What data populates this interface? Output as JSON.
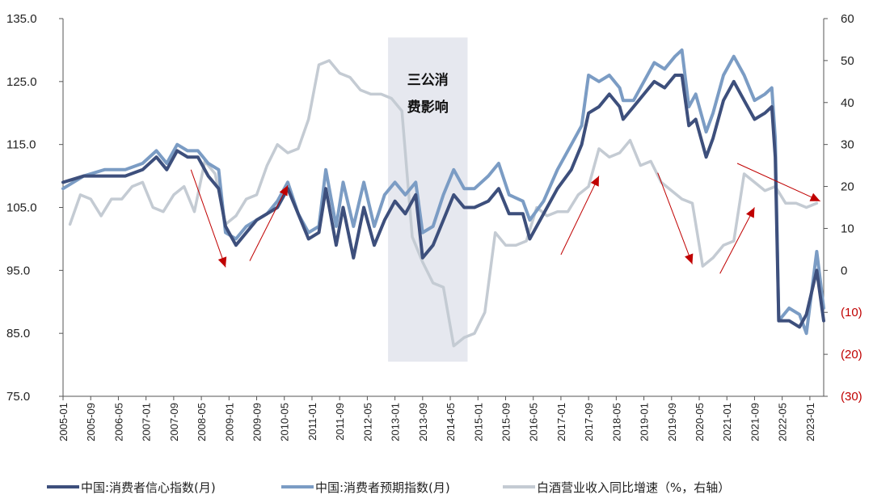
{
  "chart_data": {
    "type": "line",
    "left_axis": {
      "min": 75,
      "max": 135,
      "ticks": [
        "135.0",
        "125.0",
        "115.0",
        "105.0",
        "95.0",
        "85.0",
        "75.0"
      ]
    },
    "right_axis": {
      "min": -30,
      "max": 60,
      "ticks": [
        "60",
        "50",
        "40",
        "30",
        "20",
        "10",
        "0",
        "(10)",
        "(20)",
        "(30)"
      ]
    },
    "x_tick_labels": [
      "2005-01",
      "2005-09",
      "2006-05",
      "2007-01",
      "2007-09",
      "2008-05",
      "2009-01",
      "2009-09",
      "2010-05",
      "2011-01",
      "2011-09",
      "2012-05",
      "2013-01",
      "2013-09",
      "2014-05",
      "2015-01",
      "2015-09",
      "2016-05",
      "2017-01",
      "2017-09",
      "2018-05",
      "2019-01",
      "2019-09",
      "2020-05",
      "2021-01",
      "2021-09",
      "2022-05",
      "2023-01"
    ],
    "annotation": {
      "line1": "三公消",
      "line2": "费影响",
      "start": "2012-11",
      "end": "2014-10"
    },
    "series": [
      {
        "name": "中国:消费者信心指数(月)",
        "axis": "left",
        "color": "#3d4f7c",
        "points": [
          [
            "2005-01",
            109
          ],
          [
            "2005-07",
            110
          ],
          [
            "2006-01",
            110
          ],
          [
            "2006-07",
            110
          ],
          [
            "2006-12",
            111
          ],
          [
            "2007-04",
            113
          ],
          [
            "2007-07",
            111
          ],
          [
            "2007-10",
            114
          ],
          [
            "2008-01",
            113
          ],
          [
            "2008-04",
            113
          ],
          [
            "2008-07",
            110
          ],
          [
            "2008-10",
            108
          ],
          [
            "2008-12",
            102
          ],
          [
            "2009-03",
            99
          ],
          [
            "2009-06",
            101
          ],
          [
            "2009-09",
            103
          ],
          [
            "2009-12",
            104
          ],
          [
            "2010-03",
            105
          ],
          [
            "2010-06",
            108
          ],
          [
            "2010-09",
            104
          ],
          [
            "2010-12",
            100
          ],
          [
            "2011-03",
            101
          ],
          [
            "2011-05",
            108
          ],
          [
            "2011-08",
            99
          ],
          [
            "2011-10",
            105
          ],
          [
            "2012-01",
            97
          ],
          [
            "2012-04",
            105
          ],
          [
            "2012-07",
            99
          ],
          [
            "2012-10",
            103
          ],
          [
            "2013-01",
            106
          ],
          [
            "2013-04",
            104
          ],
          [
            "2013-07",
            107
          ],
          [
            "2013-09",
            97
          ],
          [
            "2013-12",
            99
          ],
          [
            "2014-03",
            103
          ],
          [
            "2014-06",
            107
          ],
          [
            "2014-09",
            105
          ],
          [
            "2014-12",
            105
          ],
          [
            "2015-04",
            106
          ],
          [
            "2015-07",
            108
          ],
          [
            "2015-10",
            104
          ],
          [
            "2016-02",
            104
          ],
          [
            "2016-04",
            100
          ],
          [
            "2016-08",
            104
          ],
          [
            "2016-12",
            108
          ],
          [
            "2017-04",
            111
          ],
          [
            "2017-07",
            115
          ],
          [
            "2017-09",
            120
          ],
          [
            "2017-12",
            121
          ],
          [
            "2018-03",
            123
          ],
          [
            "2018-06",
            121
          ],
          [
            "2018-07",
            119
          ],
          [
            "2018-10",
            121
          ],
          [
            "2019-01",
            123
          ],
          [
            "2019-04",
            125
          ],
          [
            "2019-07",
            124
          ],
          [
            "2019-10",
            126
          ],
          [
            "2019-12",
            126
          ],
          [
            "2020-02",
            118
          ],
          [
            "2020-04",
            119
          ],
          [
            "2020-07",
            113
          ],
          [
            "2020-09",
            116
          ],
          [
            "2020-12",
            122
          ],
          [
            "2021-03",
            125
          ],
          [
            "2021-06",
            122
          ],
          [
            "2021-09",
            119
          ],
          [
            "2021-12",
            120
          ],
          [
            "2022-02",
            121
          ],
          [
            "2022-03",
            113
          ],
          [
            "2022-04",
            87
          ],
          [
            "2022-07",
            87
          ],
          [
            "2022-10",
            86
          ],
          [
            "2022-12",
            88
          ],
          [
            "2023-03",
            95
          ],
          [
            "2023-05",
            87
          ]
        ]
      },
      {
        "name": "中国:消费者预期指数(月)",
        "axis": "left",
        "color": "#7b9cc4",
        "points": [
          [
            "2005-01",
            108
          ],
          [
            "2005-07",
            110
          ],
          [
            "2006-01",
            111
          ],
          [
            "2006-07",
            111
          ],
          [
            "2006-12",
            112
          ],
          [
            "2007-04",
            114
          ],
          [
            "2007-07",
            112
          ],
          [
            "2007-10",
            115
          ],
          [
            "2008-01",
            114
          ],
          [
            "2008-04",
            114
          ],
          [
            "2008-07",
            112
          ],
          [
            "2008-10",
            111
          ],
          [
            "2008-12",
            101
          ],
          [
            "2009-03",
            100
          ],
          [
            "2009-06",
            102
          ],
          [
            "2009-09",
            103
          ],
          [
            "2009-12",
            104
          ],
          [
            "2010-03",
            106
          ],
          [
            "2010-06",
            109
          ],
          [
            "2010-09",
            104
          ],
          [
            "2010-12",
            101
          ],
          [
            "2011-03",
            102
          ],
          [
            "2011-05",
            111
          ],
          [
            "2011-08",
            102
          ],
          [
            "2011-10",
            109
          ],
          [
            "2012-01",
            102
          ],
          [
            "2012-04",
            109
          ],
          [
            "2012-07",
            102
          ],
          [
            "2012-10",
            107
          ],
          [
            "2013-01",
            109
          ],
          [
            "2013-04",
            107
          ],
          [
            "2013-07",
            109
          ],
          [
            "2013-09",
            101
          ],
          [
            "2013-12",
            102
          ],
          [
            "2014-03",
            107
          ],
          [
            "2014-06",
            111
          ],
          [
            "2014-09",
            108
          ],
          [
            "2014-12",
            108
          ],
          [
            "2015-04",
            110
          ],
          [
            "2015-07",
            112
          ],
          [
            "2015-10",
            107
          ],
          [
            "2016-02",
            106
          ],
          [
            "2016-04",
            103
          ],
          [
            "2016-08",
            106
          ],
          [
            "2016-12",
            111
          ],
          [
            "2017-04",
            115
          ],
          [
            "2017-07",
            118
          ],
          [
            "2017-09",
            126
          ],
          [
            "2017-12",
            125
          ],
          [
            "2018-03",
            126
          ],
          [
            "2018-06",
            124
          ],
          [
            "2018-07",
            122
          ],
          [
            "2018-10",
            122
          ],
          [
            "2019-01",
            125
          ],
          [
            "2019-04",
            128
          ],
          [
            "2019-07",
            127
          ],
          [
            "2019-10",
            129
          ],
          [
            "2019-12",
            130
          ],
          [
            "2020-02",
            121
          ],
          [
            "2020-04",
            123
          ],
          [
            "2020-07",
            117
          ],
          [
            "2020-09",
            120
          ],
          [
            "2020-12",
            126
          ],
          [
            "2021-03",
            129
          ],
          [
            "2021-06",
            126
          ],
          [
            "2021-09",
            122
          ],
          [
            "2021-12",
            123
          ],
          [
            "2022-02",
            124
          ],
          [
            "2022-03",
            116
          ],
          [
            "2022-04",
            87
          ],
          [
            "2022-07",
            89
          ],
          [
            "2022-10",
            88
          ],
          [
            "2022-12",
            85
          ],
          [
            "2023-03",
            98
          ],
          [
            "2023-05",
            89
          ]
        ]
      },
      {
        "name": "白酒营业收入同比增速（%，右轴）",
        "axis": "right",
        "color": "#c4cbd3",
        "points": [
          [
            "2005-03",
            11
          ],
          [
            "2005-06",
            18
          ],
          [
            "2005-09",
            17
          ],
          [
            "2005-12",
            13
          ],
          [
            "2006-03",
            17
          ],
          [
            "2006-06",
            17
          ],
          [
            "2006-09",
            20
          ],
          [
            "2006-12",
            21
          ],
          [
            "2007-03",
            15
          ],
          [
            "2007-06",
            14
          ],
          [
            "2007-09",
            18
          ],
          [
            "2007-12",
            20
          ],
          [
            "2008-03",
            14
          ],
          [
            "2008-06",
            26
          ],
          [
            "2008-09",
            23
          ],
          [
            "2008-12",
            11
          ],
          [
            "2009-03",
            13
          ],
          [
            "2009-06",
            17
          ],
          [
            "2009-09",
            18
          ],
          [
            "2009-12",
            25
          ],
          [
            "2010-03",
            30
          ],
          [
            "2010-06",
            28
          ],
          [
            "2010-09",
            29
          ],
          [
            "2010-12",
            36
          ],
          [
            "2011-03",
            49
          ],
          [
            "2011-06",
            50
          ],
          [
            "2011-09",
            47
          ],
          [
            "2011-12",
            46
          ],
          [
            "2012-03",
            43
          ],
          [
            "2012-06",
            42
          ],
          [
            "2012-09",
            42
          ],
          [
            "2012-12",
            41
          ],
          [
            "2013-03",
            38
          ],
          [
            "2013-06",
            8
          ],
          [
            "2013-09",
            2
          ],
          [
            "2013-12",
            -3
          ],
          [
            "2014-03",
            -4
          ],
          [
            "2014-06",
            -18
          ],
          [
            "2014-09",
            -16
          ],
          [
            "2014-12",
            -15
          ],
          [
            "2015-03",
            -10
          ],
          [
            "2015-06",
            9
          ],
          [
            "2015-09",
            6
          ],
          [
            "2015-12",
            6
          ],
          [
            "2016-03",
            7
          ],
          [
            "2016-06",
            15
          ],
          [
            "2016-09",
            13
          ],
          [
            "2016-12",
            14
          ],
          [
            "2017-03",
            14
          ],
          [
            "2017-06",
            18
          ],
          [
            "2017-09",
            20
          ],
          [
            "2017-12",
            29
          ],
          [
            "2018-03",
            27
          ],
          [
            "2018-06",
            28
          ],
          [
            "2018-09",
            31
          ],
          [
            "2018-12",
            25
          ],
          [
            "2019-03",
            26
          ],
          [
            "2019-06",
            21
          ],
          [
            "2019-09",
            19
          ],
          [
            "2019-12",
            17
          ],
          [
            "2020-03",
            16
          ],
          [
            "2020-06",
            1
          ],
          [
            "2020-09",
            3
          ],
          [
            "2020-12",
            6
          ],
          [
            "2021-03",
            7
          ],
          [
            "2021-06",
            23
          ],
          [
            "2021-09",
            21
          ],
          [
            "2021-12",
            19
          ],
          [
            "2022-03",
            20
          ],
          [
            "2022-06",
            16
          ],
          [
            "2022-09",
            16
          ],
          [
            "2022-12",
            15
          ],
          [
            "2023-03",
            16
          ]
        ]
      }
    ],
    "arrows": [
      {
        "from": [
          "2008-02",
          111
        ],
        "to": [
          "2008-12",
          95.5
        ],
        "color": "#c00000"
      },
      {
        "from": [
          "2009-07",
          96.5
        ],
        "to": [
          "2010-06",
          108.5
        ],
        "color": "#c00000"
      },
      {
        "from": [
          "2017-01",
          97.5
        ],
        "to": [
          "2017-12",
          110
        ],
        "color": "#c00000"
      },
      {
        "from": [
          "2019-05",
          110.5
        ],
        "to": [
          "2020-03",
          96
        ],
        "color": "#c00000"
      },
      {
        "from": [
          "2020-11",
          94.5
        ],
        "to": [
          "2021-09",
          105
        ],
        "color": "#c00000"
      },
      {
        "from": [
          "2021-04",
          112
        ],
        "to": [
          "2023-04",
          106
        ],
        "color": "#c00000"
      }
    ]
  }
}
